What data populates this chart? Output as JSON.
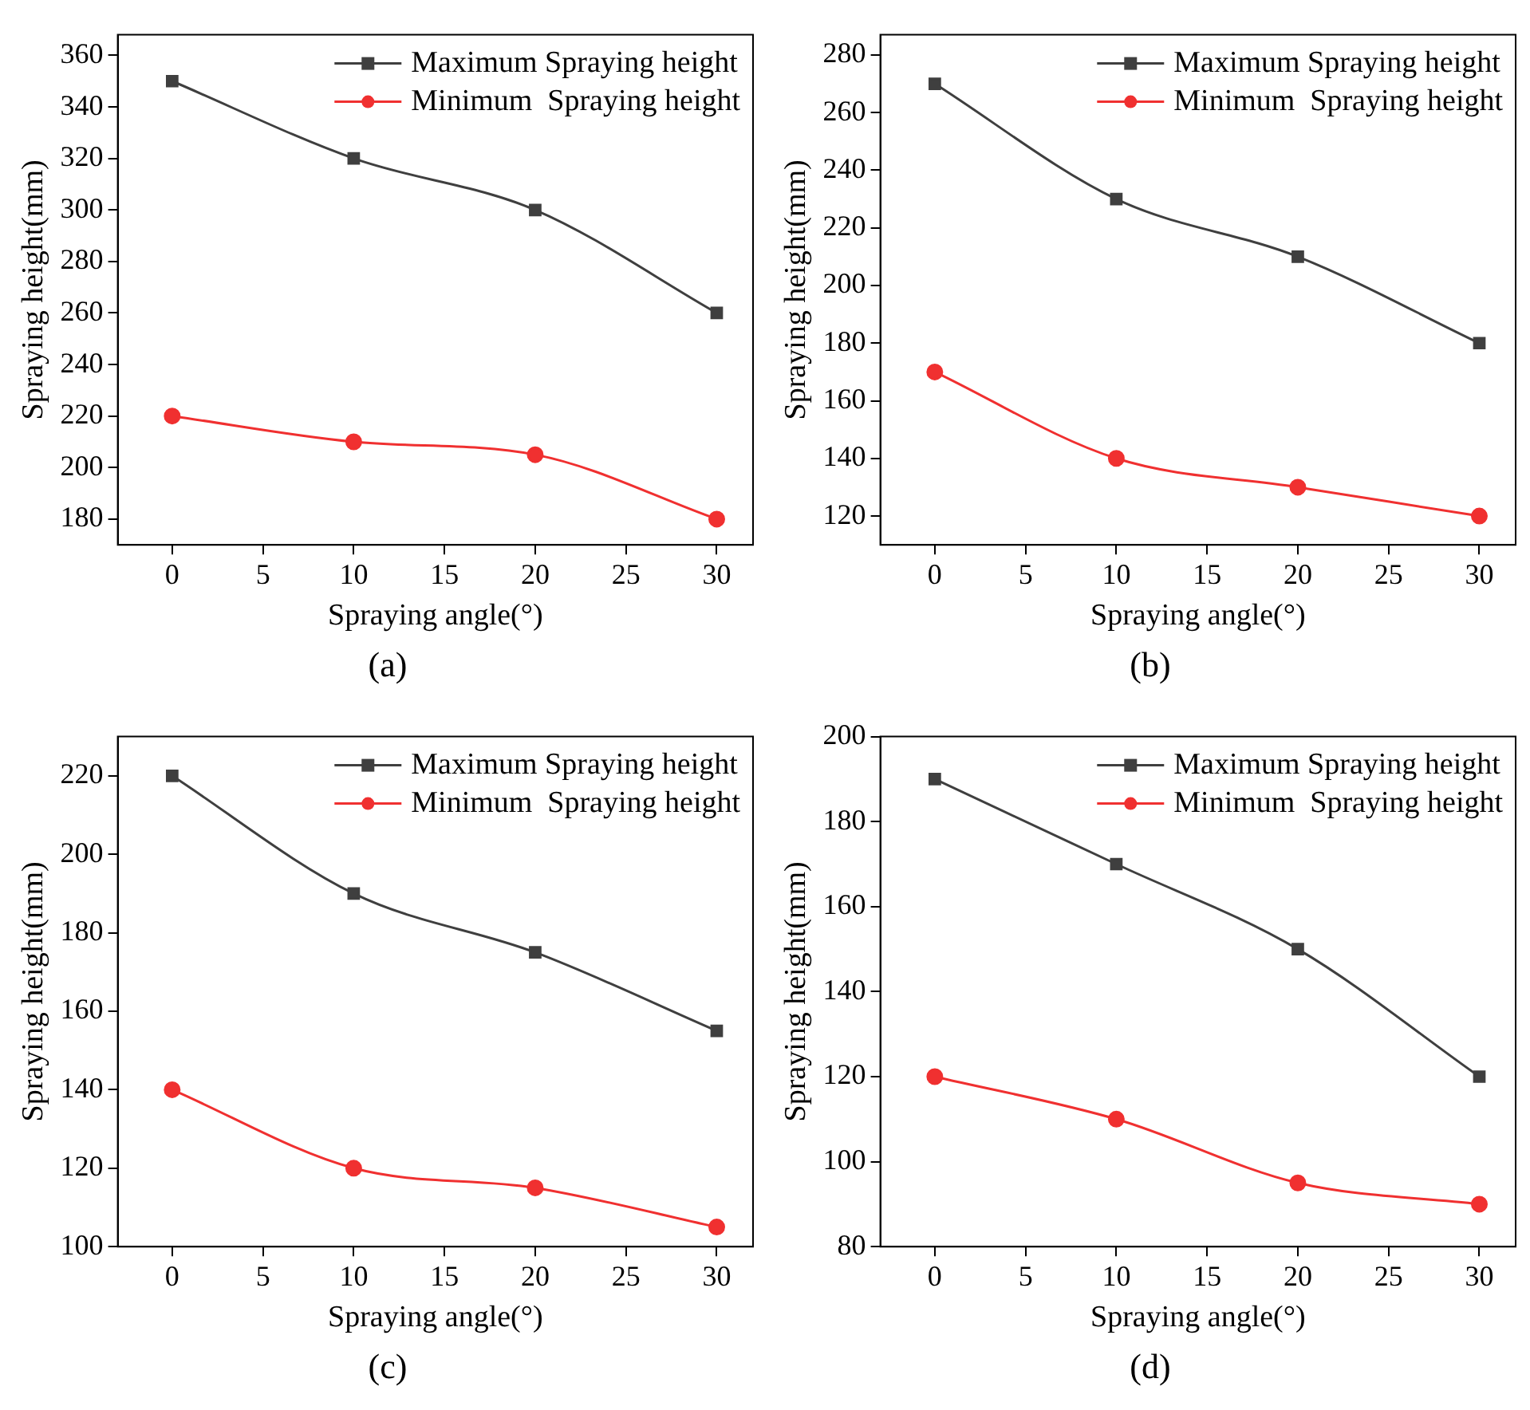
{
  "chart_data": [
    {
      "type": "line",
      "annotations": [
        "(a)"
      ],
      "xlabel": "Spraying angle(°)",
      "ylabel": "Spraying height(mm)",
      "x": [
        0,
        10,
        20,
        30
      ],
      "xlim": [
        -3,
        32
      ],
      "xticks": [
        0,
        5,
        10,
        15,
        20,
        25,
        30
      ],
      "ylim": [
        170,
        368
      ],
      "yticks": [
        180,
        200,
        220,
        240,
        260,
        280,
        300,
        320,
        340,
        360
      ],
      "legend": "top right",
      "grid": false,
      "series": [
        {
          "name": "Maximum Spraying height",
          "color": "#3f3f3f",
          "marker": "square",
          "values": [
            350,
            320,
            300,
            260
          ]
        },
        {
          "name": "Minimum  Spraying height",
          "color": "#f03030",
          "marker": "circle",
          "values": [
            220,
            210,
            205,
            180
          ]
        }
      ]
    },
    {
      "type": "line",
      "annotations": [
        "(b)"
      ],
      "xlabel": "Spraying angle(°)",
      "ylabel": "Spraying height(mm)",
      "x": [
        0,
        10,
        20,
        30
      ],
      "xlim": [
        -3,
        32
      ],
      "xticks": [
        0,
        5,
        10,
        15,
        20,
        25,
        30
      ],
      "ylim": [
        110,
        287
      ],
      "yticks": [
        120,
        140,
        160,
        180,
        200,
        220,
        240,
        260,
        280
      ],
      "legend": "top right",
      "grid": false,
      "series": [
        {
          "name": "Maximum Spraying height",
          "color": "#3f3f3f",
          "marker": "square",
          "values": [
            270,
            230,
            210,
            180
          ]
        },
        {
          "name": "Minimum  Spraying height",
          "color": "#f03030",
          "marker": "circle",
          "values": [
            170,
            140,
            130,
            120
          ]
        }
      ]
    },
    {
      "type": "line",
      "annotations": [
        "(c)"
      ],
      "xlabel": "Spraying angle(°)",
      "ylabel": "Spraying height(mm)",
      "x": [
        0,
        10,
        20,
        30
      ],
      "xlim": [
        -3,
        32
      ],
      "xticks": [
        0,
        5,
        10,
        15,
        20,
        25,
        30
      ],
      "ylim": [
        100,
        230
      ],
      "yticks": [
        100,
        120,
        140,
        160,
        180,
        200,
        220
      ],
      "legend": "top right",
      "grid": false,
      "series": [
        {
          "name": "Maximum Spraying height",
          "color": "#3f3f3f",
          "marker": "square",
          "values": [
            220,
            190,
            175,
            155
          ]
        },
        {
          "name": "Minimum  Spraying height",
          "color": "#f03030",
          "marker": "circle",
          "values": [
            140,
            120,
            115,
            105
          ]
        }
      ]
    },
    {
      "type": "line",
      "annotations": [
        "(d)"
      ],
      "xlabel": "Spraying angle(°)",
      "ylabel": "Spraying height(mm)",
      "x": [
        0,
        10,
        20,
        30
      ],
      "xlim": [
        -3,
        32
      ],
      "xticks": [
        0,
        5,
        10,
        15,
        20,
        25,
        30
      ],
      "ylim": [
        80,
        200
      ],
      "yticks": [
        80,
        100,
        120,
        140,
        160,
        180,
        200
      ],
      "legend": "top right",
      "grid": false,
      "series": [
        {
          "name": "Maximum Spraying height",
          "color": "#3f3f3f",
          "marker": "square",
          "values": [
            190,
            170,
            150,
            120
          ]
        },
        {
          "name": "Minimum  Spraying height",
          "color": "#f03030",
          "marker": "circle",
          "values": [
            120,
            110,
            95,
            90
          ]
        }
      ]
    }
  ]
}
